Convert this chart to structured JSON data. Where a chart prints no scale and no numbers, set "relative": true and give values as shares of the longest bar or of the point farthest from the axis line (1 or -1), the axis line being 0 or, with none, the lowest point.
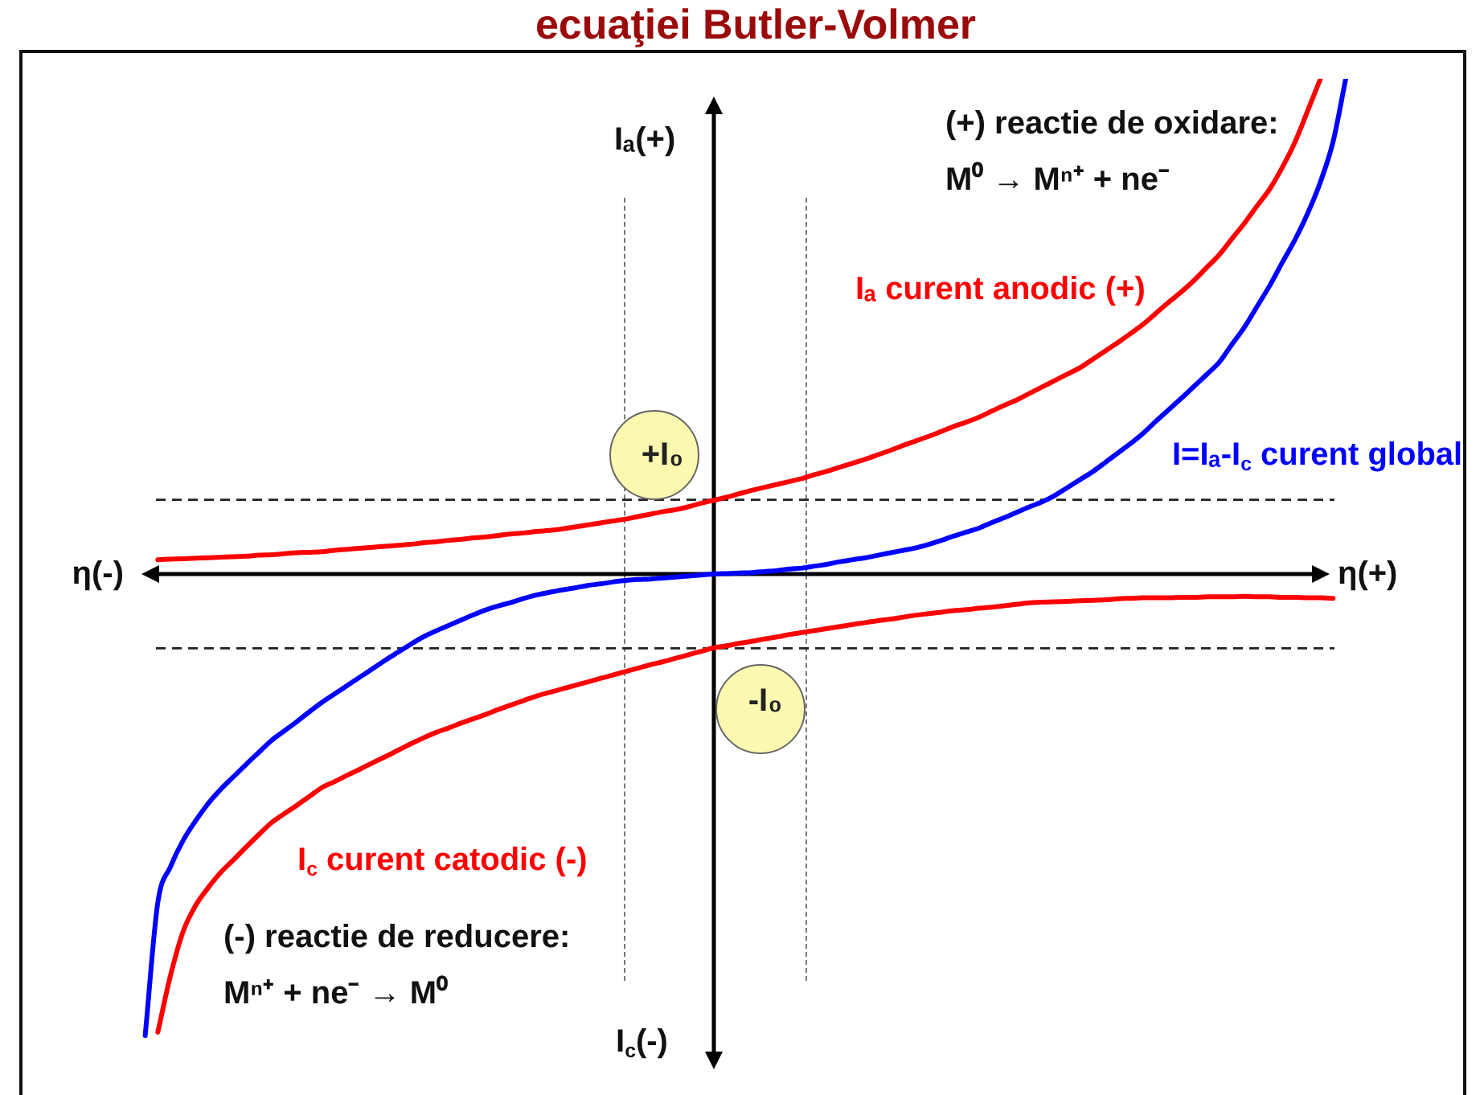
{
  "chart_data": {
    "type": "line",
    "title": "ecuaţiei Butler-Volmer",
    "xlabel": "η(+)",
    "ylabel": "Iₐ(+)",
    "relative": true,
    "categories": [
      null,
      null,
      null,
      null,
      null,
      null,
      null,
      null,
      null,
      null,
      null,
      null,
      null,
      null,
      null,
      null,
      null,
      null,
      null,
      null,
      null,
      null,
      null,
      null,
      null,
      null,
      null,
      null,
      null,
      null,
      null,
      null,
      null,
      null,
      null,
      null,
      null,
      null,
      null,
      null,
      null,
      null,
      null,
      null,
      null,
      null,
      null,
      null,
      null,
      null,
      null,
      null,
      null,
      null,
      null,
      null,
      null,
      null,
      null,
      null,
      null,
      null,
      null,
      null,
      null,
      null,
      null,
      null,
      null,
      null,
      null,
      null,
      null,
      null,
      null,
      null,
      null,
      null,
      null,
      null,
      null,
      null,
      null,
      null,
      null,
      null,
      null,
      null,
      null,
      null,
      null,
      null,
      null,
      null,
      null,
      null,
      null,
      null,
      null,
      null,
      null
    ],
    "series": [
      {
        "name": "Iₐ curent anodic (+)",
        "color": "#ff0000",
        "values": [
          null,
          null,
          null,
          null,
          null,
          null,
          0.029,
          0.03,
          0.031,
          0.032,
          0.033,
          0.034,
          0.035,
          0.036,
          0.038,
          0.039,
          0.041,
          0.043,
          0.044,
          0.045,
          0.048,
          0.05,
          0.052,
          0.054,
          0.056,
          0.058,
          0.06,
          0.063,
          0.065,
          0.068,
          0.07,
          0.073,
          0.075,
          0.078,
          0.081,
          0.083,
          0.086,
          0.088,
          0.091,
          0.095,
          0.099,
          0.103,
          0.107,
          0.111,
          0.116,
          0.121,
          0.126,
          0.13,
          0.136,
          0.143,
          0.149,
          0.155,
          0.162,
          0.169,
          0.175,
          0.181,
          0.187,
          0.193,
          0.201,
          0.208,
          0.216,
          0.224,
          0.232,
          0.241,
          0.25,
          0.26,
          0.269,
          0.278,
          0.288,
          0.298,
          0.307,
          0.317,
          0.329,
          0.341,
          0.352,
          0.365,
          0.378,
          0.391,
          0.404,
          0.417,
          0.434,
          0.451,
          0.468,
          0.486,
          0.505,
          0.527,
          0.549,
          0.57,
          0.593,
          0.619,
          0.645,
          0.677,
          0.709,
          0.744,
          0.778,
          0.822,
          0.873,
          0.936,
          1,
          null,
          null
        ]
      },
      {
        "name": "I=Iₐ-I$_{c}$ curent global",
        "color": "#0000ff",
        "values": [
          null,
          null,
          null,
          null,
          null,
          -0.932,
          -0.663,
          -0.591,
          -0.538,
          -0.498,
          -0.463,
          -0.434,
          -0.409,
          -0.384,
          -0.36,
          -0.336,
          -0.317,
          -0.298,
          -0.278,
          -0.259,
          -0.242,
          -0.225,
          -0.208,
          -0.191,
          -0.174,
          -0.158,
          -0.142,
          -0.127,
          -0.115,
          -0.104,
          -0.093,
          -0.082,
          -0.072,
          -0.064,
          -0.057,
          -0.049,
          -0.042,
          -0.037,
          -0.032,
          -0.028,
          -0.023,
          -0.02,
          -0.016,
          -0.013,
          -0.011,
          -0.01,
          -0.008,
          -0.006,
          -0.004,
          -0.002,
          0,
          0.001,
          0.002,
          0.003,
          0.005,
          0.007,
          0.01,
          0.012,
          0.016,
          0.02,
          0.025,
          0.029,
          0.033,
          0.038,
          0.043,
          0.048,
          0.053,
          0.06,
          0.068,
          0.077,
          0.085,
          0.093,
          0.104,
          0.114,
          0.125,
          0.136,
          0.146,
          0.159,
          0.175,
          0.191,
          0.207,
          0.226,
          0.245,
          0.264,
          0.285,
          0.309,
          0.332,
          0.355,
          0.379,
          0.403,
          0.428,
          0.464,
          0.499,
          0.541,
          0.583,
          0.63,
          0.676,
          0.729,
          0.792,
          0.873,
          1
        ]
      },
      {
        "name": "I$_{c}$ curent catodic (-)",
        "color": "#ff0000",
        "values": [
          null,
          null,
          null,
          null,
          null,
          null,
          -0.925,
          -0.811,
          -0.722,
          -0.669,
          -0.633,
          -0.602,
          -0.577,
          -0.551,
          -0.526,
          -0.502,
          -0.484,
          -0.467,
          -0.449,
          -0.431,
          -0.419,
          -0.406,
          -0.394,
          -0.381,
          -0.369,
          -0.356,
          -0.343,
          -0.331,
          -0.32,
          -0.311,
          -0.301,
          -0.292,
          -0.283,
          -0.273,
          -0.264,
          -0.255,
          -0.246,
          -0.239,
          -0.232,
          -0.225,
          -0.218,
          -0.211,
          -0.204,
          -0.197,
          -0.19,
          -0.183,
          -0.177,
          -0.17,
          -0.163,
          -0.156,
          -0.149,
          -0.145,
          -0.14,
          -0.136,
          -0.131,
          -0.127,
          -0.122,
          -0.118,
          -0.114,
          -0.11,
          -0.106,
          -0.102,
          -0.098,
          -0.094,
          -0.091,
          -0.087,
          -0.083,
          -0.08,
          -0.077,
          -0.074,
          -0.072,
          -0.069,
          -0.067,
          -0.064,
          -0.061,
          -0.058,
          -0.057,
          -0.056,
          -0.055,
          -0.054,
          -0.053,
          -0.052,
          -0.05,
          -0.049,
          -0.048,
          -0.048,
          -0.048,
          -0.047,
          -0.047,
          -0.046,
          -0.046,
          -0.046,
          -0.045,
          -0.046,
          -0.046,
          -0.047,
          -0.047,
          -0.048,
          -0.048,
          -0.049,
          null
        ]
      }
    ],
    "ref_lines": [
      {
        "axis": "y",
        "value": 0.15,
        "label": "+I₀",
        "color": "#222222",
        "line_style": "dashed"
      },
      {
        "axis": "y",
        "value": -0.15,
        "label": "-I₀",
        "color": "#222222",
        "line_style": "dashed"
      }
    ],
    "annotations": [
      "(+) reactie de oxidare:",
      "M⁰ → Mⁿ⁺ + ne⁻",
      "(-) reactie de reducere:",
      "Mⁿ⁺ + ne⁻ → M⁰",
      "η(-)",
      "I$_{c}$(-)"
    ]
  }
}
